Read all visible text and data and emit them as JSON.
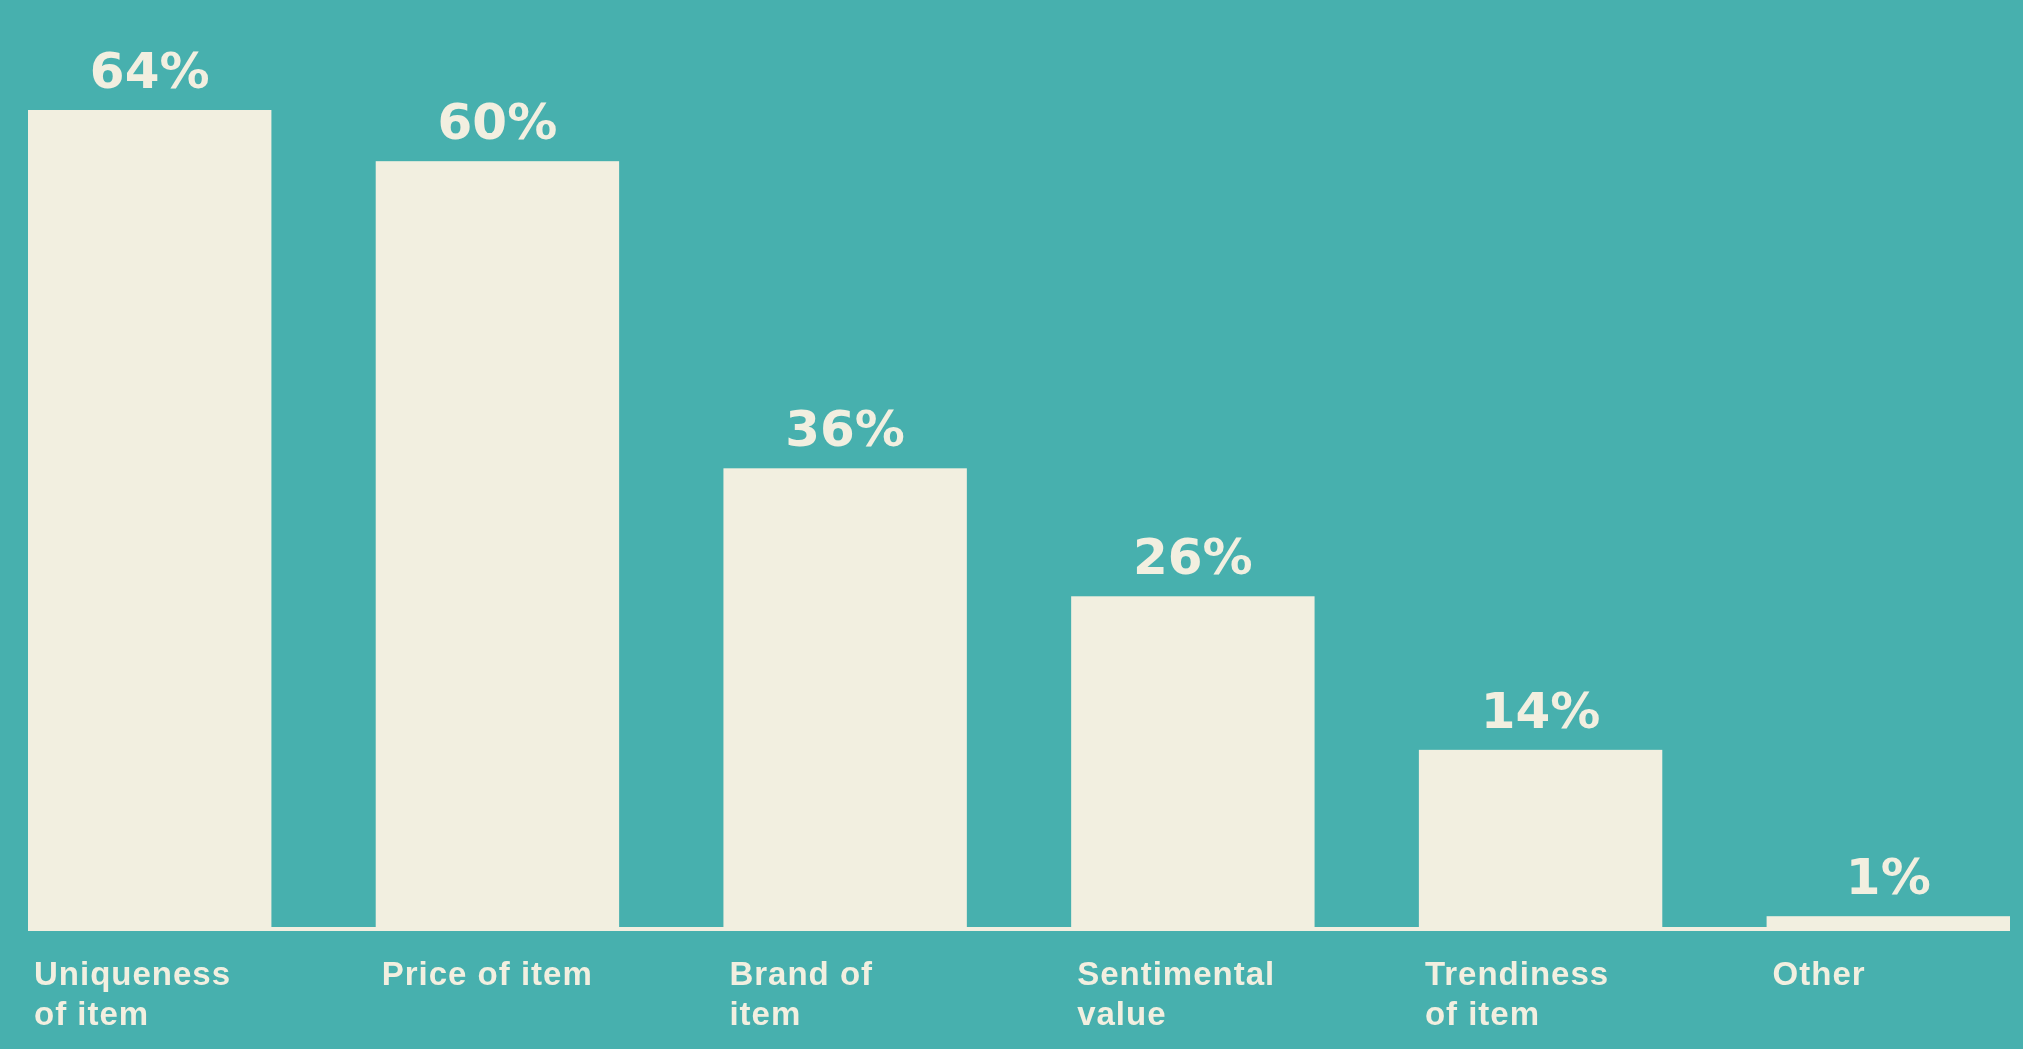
{
  "chart_data": {
    "type": "bar",
    "categories": [
      "Uniqueness of item",
      "Price of item",
      "Brand of item",
      "Sentimental value",
      "Trendiness of item",
      "Other"
    ],
    "values": [
      64,
      60,
      36,
      26,
      14,
      1
    ],
    "color": "#f2efe0",
    "data_labels": true,
    "value_labels": [
      "64%",
      "60%",
      "36%",
      "26%",
      "14%",
      "1%"
    ]
  }
}
